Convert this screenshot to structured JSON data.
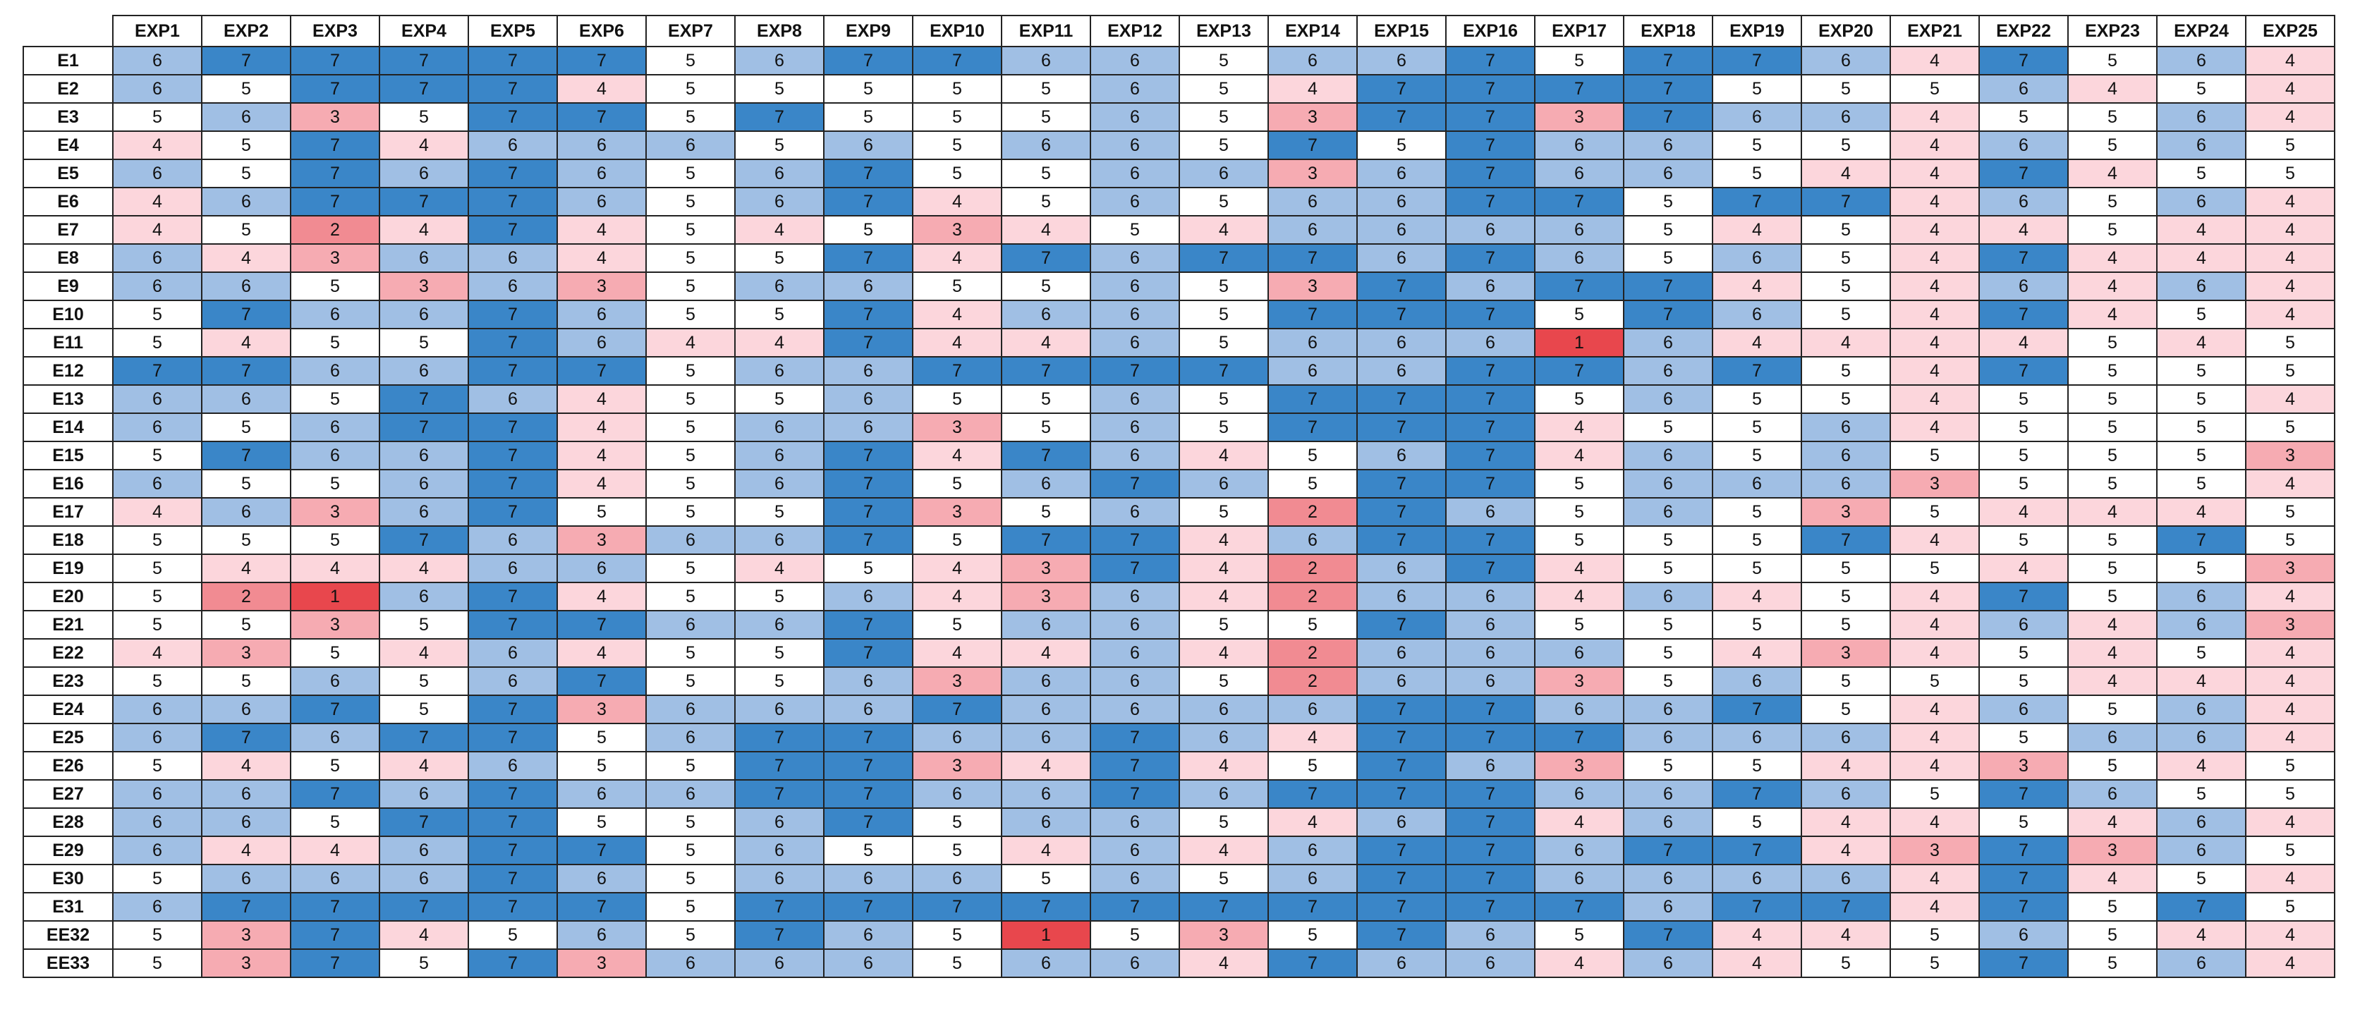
{
  "table": {
    "columns": [
      "EXP1",
      "EXP2",
      "EXP3",
      "EXP4",
      "EXP5",
      "EXP6",
      "EXP7",
      "EXP8",
      "EXP9",
      "EXP10",
      "EXP11",
      "EXP12",
      "EXP13",
      "EXP14",
      "EXP15",
      "EXP16",
      "EXP17",
      "EXP18",
      "EXP19",
      "EXP20",
      "EXP21",
      "EXP22",
      "EXP23",
      "EXP24",
      "EXP25"
    ],
    "rows": [
      {
        "label": "E1",
        "values": [
          6,
          7,
          7,
          7,
          7,
          7,
          5,
          6,
          7,
          7,
          6,
          6,
          5,
          6,
          6,
          7,
          5,
          7,
          7,
          6,
          4,
          7,
          5,
          6,
          4
        ]
      },
      {
        "label": "E2",
        "values": [
          6,
          5,
          7,
          7,
          7,
          4,
          5,
          5,
          5,
          5,
          5,
          6,
          5,
          4,
          7,
          7,
          7,
          7,
          5,
          5,
          5,
          6,
          4,
          5,
          4
        ]
      },
      {
        "label": "E3",
        "values": [
          5,
          6,
          3,
          5,
          7,
          7,
          5,
          7,
          5,
          5,
          5,
          6,
          5,
          3,
          7,
          7,
          3,
          7,
          6,
          6,
          4,
          5,
          5,
          6,
          4
        ]
      },
      {
        "label": "E4",
        "values": [
          4,
          5,
          7,
          4,
          6,
          6,
          6,
          5,
          6,
          5,
          6,
          6,
          5,
          7,
          5,
          7,
          6,
          6,
          5,
          5,
          4,
          6,
          5,
          6,
          5
        ]
      },
      {
        "label": "E5",
        "values": [
          6,
          5,
          7,
          6,
          7,
          6,
          5,
          6,
          7,
          5,
          5,
          6,
          6,
          3,
          6,
          7,
          6,
          6,
          5,
          4,
          4,
          7,
          4,
          5,
          5
        ]
      },
      {
        "label": "E6",
        "values": [
          4,
          6,
          7,
          7,
          7,
          6,
          5,
          6,
          7,
          4,
          5,
          6,
          5,
          6,
          6,
          7,
          7,
          5,
          7,
          7,
          4,
          6,
          5,
          6,
          4
        ]
      },
      {
        "label": "E7",
        "values": [
          4,
          5,
          2,
          4,
          7,
          4,
          5,
          4,
          5,
          3,
          4,
          5,
          4,
          6,
          6,
          6,
          6,
          5,
          4,
          5,
          4,
          4,
          5,
          4,
          4
        ]
      },
      {
        "label": "E8",
        "values": [
          6,
          4,
          3,
          6,
          6,
          4,
          5,
          5,
          7,
          4,
          7,
          6,
          7,
          7,
          6,
          7,
          6,
          5,
          6,
          5,
          4,
          7,
          4,
          4,
          4
        ]
      },
      {
        "label": "E9",
        "values": [
          6,
          6,
          5,
          3,
          6,
          3,
          5,
          6,
          6,
          5,
          5,
          6,
          5,
          3,
          7,
          6,
          7,
          7,
          4,
          5,
          4,
          6,
          4,
          6,
          4
        ]
      },
      {
        "label": "E10",
        "values": [
          5,
          7,
          6,
          6,
          7,
          6,
          5,
          5,
          7,
          4,
          6,
          6,
          5,
          7,
          7,
          7,
          5,
          7,
          6,
          5,
          4,
          7,
          4,
          5,
          4
        ]
      },
      {
        "label": "E11",
        "values": [
          5,
          4,
          5,
          5,
          7,
          6,
          4,
          4,
          7,
          4,
          4,
          6,
          5,
          6,
          6,
          6,
          1,
          6,
          4,
          4,
          4,
          4,
          5,
          4,
          5
        ]
      },
      {
        "label": "E12",
        "values": [
          7,
          7,
          6,
          6,
          7,
          7,
          5,
          6,
          6,
          7,
          7,
          7,
          7,
          6,
          6,
          7,
          7,
          6,
          7,
          5,
          4,
          7,
          5,
          5,
          5
        ]
      },
      {
        "label": "E13",
        "values": [
          6,
          6,
          5,
          7,
          6,
          4,
          5,
          5,
          6,
          5,
          5,
          6,
          5,
          7,
          7,
          7,
          5,
          6,
          5,
          5,
          4,
          5,
          5,
          5,
          4
        ]
      },
      {
        "label": "E14",
        "values": [
          6,
          5,
          6,
          7,
          7,
          4,
          5,
          6,
          6,
          3,
          5,
          6,
          5,
          7,
          7,
          7,
          4,
          5,
          5,
          6,
          4,
          5,
          5,
          5,
          5
        ]
      },
      {
        "label": "E15",
        "values": [
          5,
          7,
          6,
          6,
          7,
          4,
          5,
          6,
          7,
          4,
          7,
          6,
          4,
          5,
          6,
          7,
          4,
          6,
          5,
          6,
          5,
          5,
          5,
          5,
          3
        ]
      },
      {
        "label": "E16",
        "values": [
          6,
          5,
          5,
          6,
          7,
          4,
          5,
          6,
          7,
          5,
          6,
          7,
          6,
          5,
          7,
          7,
          5,
          6,
          6,
          6,
          3,
          5,
          5,
          5,
          4
        ]
      },
      {
        "label": "E17",
        "values": [
          4,
          6,
          3,
          6,
          7,
          5,
          5,
          5,
          7,
          3,
          5,
          6,
          5,
          2,
          7,
          6,
          5,
          6,
          5,
          3,
          5,
          4,
          4,
          4,
          5
        ]
      },
      {
        "label": "E18",
        "values": [
          5,
          5,
          5,
          7,
          6,
          3,
          6,
          6,
          7,
          5,
          7,
          7,
          4,
          6,
          7,
          7,
          5,
          5,
          5,
          7,
          4,
          5,
          5,
          7,
          5
        ]
      },
      {
        "label": "E19",
        "values": [
          5,
          4,
          4,
          4,
          6,
          6,
          5,
          4,
          5,
          4,
          3,
          7,
          4,
          2,
          6,
          7,
          4,
          5,
          5,
          5,
          5,
          4,
          5,
          5,
          3
        ]
      },
      {
        "label": "E20",
        "values": [
          5,
          2,
          1,
          6,
          7,
          4,
          5,
          5,
          6,
          4,
          3,
          6,
          4,
          2,
          6,
          6,
          4,
          6,
          4,
          5,
          4,
          7,
          5,
          6,
          4
        ]
      },
      {
        "label": "E21",
        "values": [
          5,
          5,
          3,
          5,
          7,
          7,
          6,
          6,
          7,
          5,
          6,
          6,
          5,
          5,
          7,
          6,
          5,
          5,
          5,
          5,
          4,
          6,
          4,
          6,
          3
        ]
      },
      {
        "label": "E22",
        "values": [
          4,
          3,
          5,
          4,
          6,
          4,
          5,
          5,
          7,
          4,
          4,
          6,
          4,
          2,
          6,
          6,
          6,
          5,
          4,
          3,
          4,
          5,
          4,
          5,
          4
        ]
      },
      {
        "label": "E23",
        "values": [
          5,
          5,
          6,
          5,
          6,
          7,
          5,
          5,
          6,
          3,
          6,
          6,
          5,
          2,
          6,
          6,
          3,
          5,
          6,
          5,
          5,
          5,
          4,
          4,
          4
        ]
      },
      {
        "label": "E24",
        "values": [
          6,
          6,
          7,
          5,
          7,
          3,
          6,
          6,
          6,
          7,
          6,
          6,
          6,
          6,
          7,
          7,
          6,
          6,
          7,
          5,
          4,
          6,
          5,
          6,
          4
        ]
      },
      {
        "label": "E25",
        "values": [
          6,
          7,
          6,
          7,
          7,
          5,
          6,
          7,
          7,
          6,
          6,
          7,
          6,
          4,
          7,
          7,
          7,
          6,
          6,
          6,
          4,
          5,
          6,
          6,
          4
        ]
      },
      {
        "label": "E26",
        "values": [
          5,
          4,
          5,
          4,
          6,
          5,
          5,
          7,
          7,
          3,
          4,
          7,
          4,
          5,
          7,
          6,
          3,
          5,
          5,
          4,
          4,
          3,
          5,
          4,
          5
        ]
      },
      {
        "label": "E27",
        "values": [
          6,
          6,
          7,
          6,
          7,
          6,
          6,
          7,
          7,
          6,
          6,
          7,
          6,
          7,
          7,
          7,
          6,
          6,
          7,
          6,
          5,
          7,
          6,
          5,
          5
        ]
      },
      {
        "label": "E28",
        "values": [
          6,
          6,
          5,
          7,
          7,
          5,
          5,
          6,
          7,
          5,
          6,
          6,
          5,
          4,
          6,
          7,
          4,
          6,
          5,
          4,
          4,
          5,
          4,
          6,
          4
        ]
      },
      {
        "label": "E29",
        "values": [
          6,
          4,
          4,
          6,
          7,
          7,
          5,
          6,
          5,
          5,
          4,
          6,
          4,
          6,
          7,
          7,
          6,
          7,
          7,
          4,
          3,
          7,
          3,
          6,
          5
        ]
      },
      {
        "label": "E30",
        "values": [
          5,
          6,
          6,
          6,
          7,
          6,
          5,
          6,
          6,
          6,
          5,
          6,
          5,
          6,
          7,
          7,
          6,
          6,
          6,
          6,
          4,
          7,
          4,
          5,
          4
        ]
      },
      {
        "label": "E31",
        "values": [
          6,
          7,
          7,
          7,
          7,
          7,
          5,
          7,
          7,
          7,
          7,
          7,
          7,
          7,
          7,
          7,
          7,
          6,
          7,
          7,
          4,
          7,
          5,
          7,
          5
        ]
      },
      {
        "label": "EE32",
        "values": [
          5,
          3,
          7,
          4,
          5,
          6,
          5,
          7,
          6,
          5,
          1,
          5,
          3,
          5,
          7,
          6,
          5,
          7,
          4,
          4,
          5,
          6,
          5,
          4,
          4
        ]
      },
      {
        "label": "EE33",
        "values": [
          5,
          3,
          7,
          5,
          7,
          3,
          6,
          6,
          6,
          5,
          6,
          6,
          4,
          7,
          6,
          6,
          4,
          6,
          4,
          5,
          5,
          7,
          5,
          6,
          4
        ]
      }
    ],
    "colors": {
      "1": "#e8474d",
      "2": "#f18b92",
      "3": "#f6abb2",
      "4": "#fcd6dc",
      "5": "#ffffff",
      "6": "#a0bfe4",
      "7": "#3a86c8"
    }
  }
}
